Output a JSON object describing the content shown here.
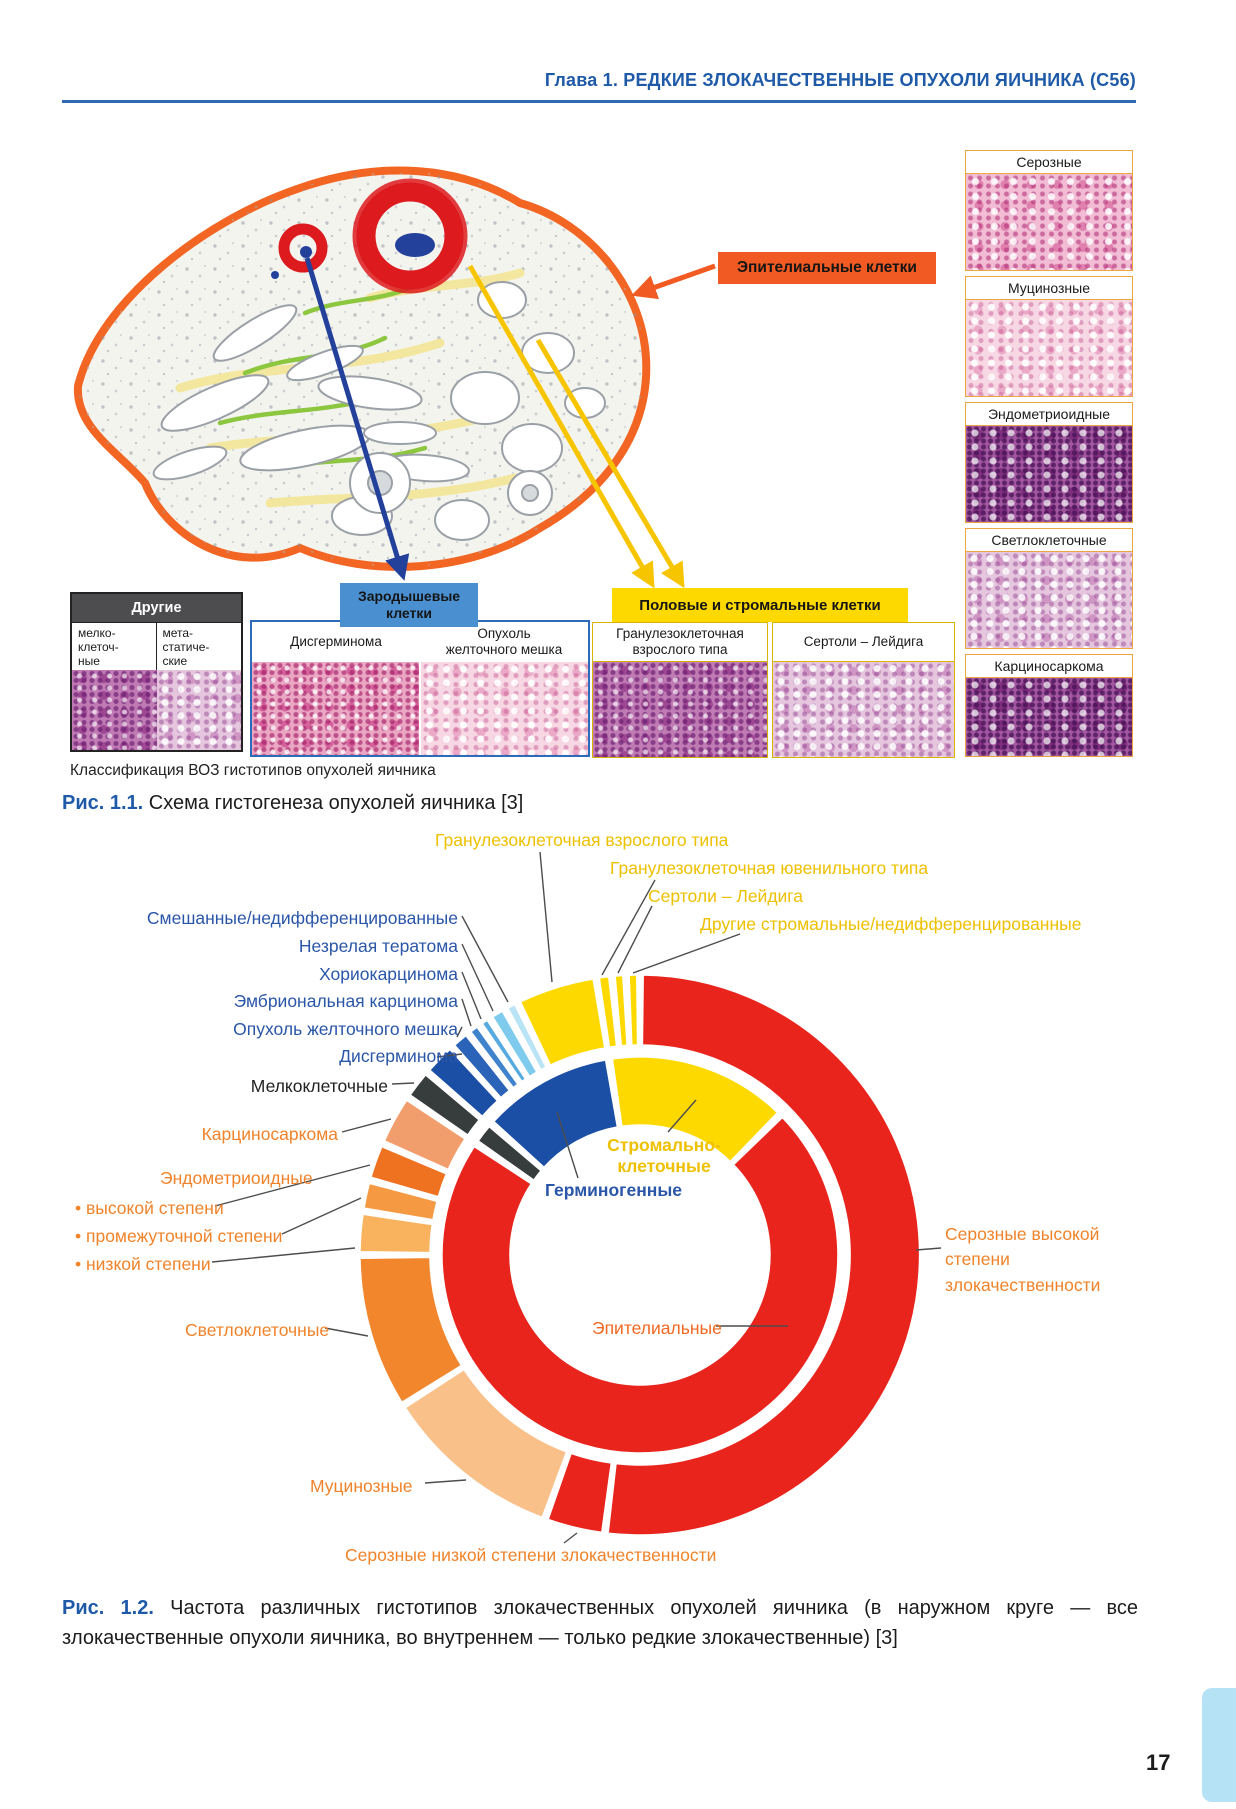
{
  "page": {
    "header": "Глава 1. РЕДКИЕ ЗЛОКАЧЕСТВЕННЫЕ ОПУХОЛИ ЯИЧНИКА (С56)",
    "page_number": "17",
    "accent_blue": "#1e5aa8"
  },
  "fig1": {
    "epithelial_label": "Эпителиальные клетки",
    "right_panels": [
      {
        "title": "Серозные"
      },
      {
        "title": "Муцинозные"
      },
      {
        "title": "Эндометриоидные"
      },
      {
        "title": "Светлоклеточные"
      },
      {
        "title": "Карциносаркома"
      }
    ],
    "other_group": {
      "title": "Другие",
      "col1": "мелко-\nклеточ-\nные",
      "col2": "мета-\nстатиче-\nские"
    },
    "germ_group": {
      "title": "Зародышевые клетки",
      "panel1": "Дисгерминома",
      "panel2": "Опухоль\nжелточного мешка"
    },
    "stromal_group": {
      "title": "Половые и стромальные клетки",
      "panel1": "Гранулезоклеточная взрослого типа",
      "panel2": "Сертоли – Лейдига"
    },
    "caption_note": "Классификация ВОЗ гистотипов опухолей яичника",
    "caption_label": "Рис. 1.1.",
    "caption_text": "Схема гистогенеза опухолей яичника [3]"
  },
  "fig2": {
    "endometrioid_label": "Эндометриоидные",
    "bullets": [
      "• высокой степени",
      "• промежуточной степени",
      "• низкой степени"
    ],
    "caption_label": "Рис. 1.2.",
    "caption_text": "Частота различных гистотипов злокачественных опухолей яичника (в наружном круге — все злокачественные опухоли яичника, во внутреннем — только редкие злокачественные) [3]"
  },
  "chart_data": {
    "type": "donut",
    "title": "Частота различных гистотипов злокачественных опухолей яичника",
    "legend_position": "around",
    "rings": [
      {
        "name": "Наружный круг — все злокачественные опухоли яичника",
        "outer_radius": 280,
        "inner_radius": 210,
        "start_angle": 0,
        "gap_deg": 1.3,
        "segments": [
          {
            "name": "Серозные высокой степени злокачественности",
            "value": 52,
            "color": "#e9241c"
          },
          {
            "name": "Серозные низкой степени злокачественности",
            "value": 3.5,
            "color": "#e9241c"
          },
          {
            "name": "Муцинозные",
            "value": 10.5,
            "color": "#f9c08a"
          },
          {
            "name": "Светлоклеточные",
            "value": 9,
            "color": "#f1862d"
          },
          {
            "name": "Эндометриоидные низкой степени",
            "value": 2.5,
            "color": "#f9b25e"
          },
          {
            "name": "Эндометриоидные промежуточной степени",
            "value": 1.8,
            "color": "#f59a43"
          },
          {
            "name": "Эндометриоидные высокой степени",
            "value": 2.2,
            "color": "#ee7220"
          },
          {
            "name": "Карциносаркома",
            "value": 3,
            "color": "#f29e6c"
          },
          {
            "name": "Мелкоклеточные",
            "value": 1.8,
            "color": "#373c3c"
          },
          {
            "name": "Дисгерминома",
            "value": 2,
            "color": "#1b4fa5"
          },
          {
            "name": "Опухоль желточного мешка",
            "value": 1.2,
            "color": "#2a63b8"
          },
          {
            "name": "Эмбриональная карцинома",
            "value": 0.8,
            "color": "#3e83cc"
          },
          {
            "name": "Хориокарцинома",
            "value": 0.7,
            "color": "#56aadf"
          },
          {
            "name": "Незрелая тератома",
            "value": 1,
            "color": "#7ecbee"
          },
          {
            "name": "Смешанные/недифференцированные",
            "value": 0.8,
            "color": "#b9e4f6"
          },
          {
            "name": "Гранулезоклеточная взрослого типа",
            "value": 4.7,
            "color": "#fdd900"
          },
          {
            "name": "Гранулезоклеточная ювенильного типа",
            "value": 0.9,
            "color": "#fdd900"
          },
          {
            "name": "Сертоли – Лейдига",
            "value": 0.8,
            "color": "#fdd900"
          },
          {
            "name": "Другие стромальные/недифференцированные",
            "value": 0.8,
            "color": "#fdd900"
          }
        ]
      },
      {
        "name": "Внутренний круг — только редкие злокачественные опухоли",
        "outer_radius": 198,
        "inner_radius": 130,
        "start_angle": 45,
        "gap_deg": 2,
        "segments": [
          {
            "name": "Эпителиальные",
            "value": 72,
            "color": "#e9241c"
          },
          {
            "name": "Мелкоклеточные",
            "value": 2,
            "color": "#373c3c"
          },
          {
            "name": "Герминогенные",
            "value": 11,
            "color": "#1b4fa5"
          },
          {
            "name": "Стромально-клеточные",
            "value": 15,
            "color": "#fdd900"
          }
        ]
      }
    ]
  }
}
